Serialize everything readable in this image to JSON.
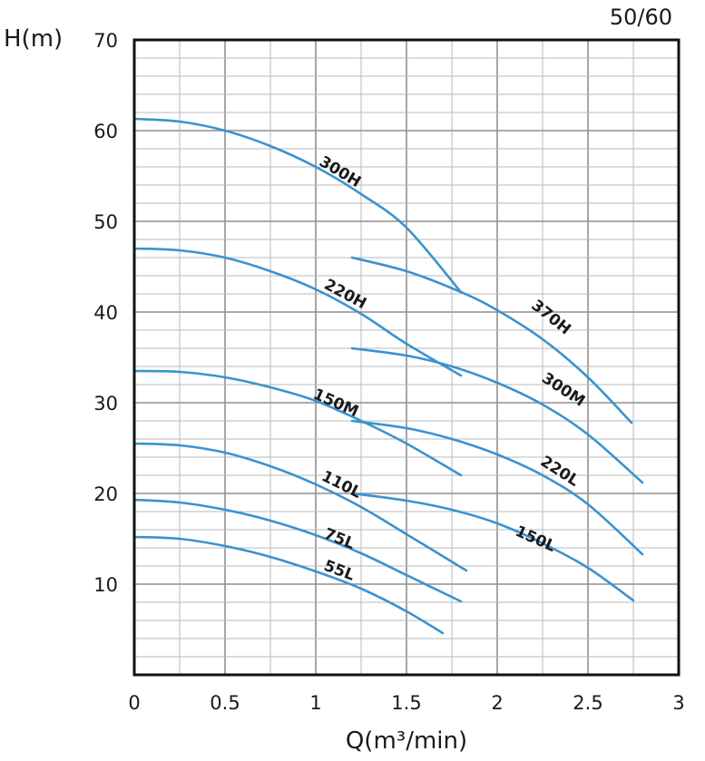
{
  "chart_data": {
    "type": "line",
    "corner_label": "50/60",
    "xlabel": "Q(m³/min)",
    "ylabel": "H(m)",
    "xlim": [
      0,
      3
    ],
    "ylim": [
      0,
      70
    ],
    "x_ticks": [
      0,
      0.5,
      1,
      1.5,
      2,
      2.5,
      3
    ],
    "x_tick_labels": [
      "0",
      "0.5",
      "1",
      "1.5",
      "2",
      "2.5",
      "3"
    ],
    "y_ticks": [
      10,
      20,
      30,
      40,
      50,
      60,
      70
    ],
    "y_tick_labels": [
      "10",
      "20",
      "30",
      "40",
      "50",
      "60",
      "70"
    ],
    "grid": true,
    "grid_x_step": 0.25,
    "grid_y_step": 2,
    "line_color": "#3a93cf",
    "series": [
      {
        "name": "300H",
        "label_x": 1.12,
        "label_y": 55.0,
        "x": [
          0,
          0.25,
          0.5,
          0.75,
          1.0,
          1.25,
          1.5,
          1.8
        ],
        "y": [
          61.3,
          61.0,
          60.0,
          58.3,
          56.0,
          53.0,
          49.3,
          42.2
        ]
      },
      {
        "name": "370H",
        "label_x": 2.28,
        "label_y": 39.0,
        "x": [
          1.2,
          1.5,
          1.8,
          2.0,
          2.25,
          2.5,
          2.74
        ],
        "y": [
          46.0,
          44.5,
          42.2,
          40.2,
          37.0,
          32.8,
          27.8
        ]
      },
      {
        "name": "220H",
        "label_x": 1.15,
        "label_y": 41.5,
        "x": [
          0,
          0.25,
          0.5,
          0.75,
          1.0,
          1.25,
          1.5,
          1.8
        ],
        "y": [
          47.0,
          46.8,
          46.0,
          44.5,
          42.5,
          39.8,
          36.5,
          33.0
        ]
      },
      {
        "name": "300M",
        "label_x": 2.35,
        "label_y": 31.0,
        "x": [
          1.2,
          1.5,
          1.75,
          2.0,
          2.25,
          2.5,
          2.8
        ],
        "y": [
          36.0,
          35.2,
          34.0,
          32.2,
          29.8,
          26.5,
          21.2
        ]
      },
      {
        "name": "150M",
        "label_x": 1.1,
        "label_y": 29.5,
        "x": [
          0,
          0.25,
          0.5,
          0.75,
          1.0,
          1.25,
          1.5,
          1.8
        ],
        "y": [
          33.5,
          33.4,
          32.8,
          31.7,
          30.2,
          28.0,
          25.5,
          22.0
        ]
      },
      {
        "name": "220L",
        "label_x": 2.33,
        "label_y": 22.0,
        "x": [
          1.2,
          1.5,
          1.75,
          2.0,
          2.25,
          2.5,
          2.8
        ],
        "y": [
          28.0,
          27.2,
          26.0,
          24.3,
          22.0,
          18.8,
          13.3
        ]
      },
      {
        "name": "110L",
        "label_x": 1.13,
        "label_y": 20.5,
        "x": [
          0,
          0.25,
          0.5,
          0.75,
          1.0,
          1.25,
          1.5,
          1.83
        ],
        "y": [
          25.5,
          25.3,
          24.5,
          23.0,
          21.0,
          18.5,
          15.5,
          11.5
        ]
      },
      {
        "name": "150L",
        "label_x": 2.2,
        "label_y": 14.5,
        "x": [
          1.2,
          1.5,
          1.75,
          2.0,
          2.25,
          2.5,
          2.75
        ],
        "y": [
          20.0,
          19.2,
          18.2,
          16.7,
          14.5,
          11.8,
          8.2
        ]
      },
      {
        "name": "75L",
        "label_x": 1.12,
        "label_y": 14.5,
        "x": [
          0,
          0.25,
          0.5,
          0.75,
          1.0,
          1.25,
          1.5,
          1.8
        ],
        "y": [
          19.3,
          19.0,
          18.2,
          17.0,
          15.4,
          13.4,
          11.0,
          8.1
        ]
      },
      {
        "name": "55L",
        "label_x": 1.12,
        "label_y": 11.0,
        "x": [
          0,
          0.25,
          0.5,
          0.75,
          1.0,
          1.25,
          1.5,
          1.7
        ],
        "y": [
          15.2,
          15.0,
          14.2,
          13.0,
          11.4,
          9.5,
          7.0,
          4.6
        ]
      }
    ]
  }
}
